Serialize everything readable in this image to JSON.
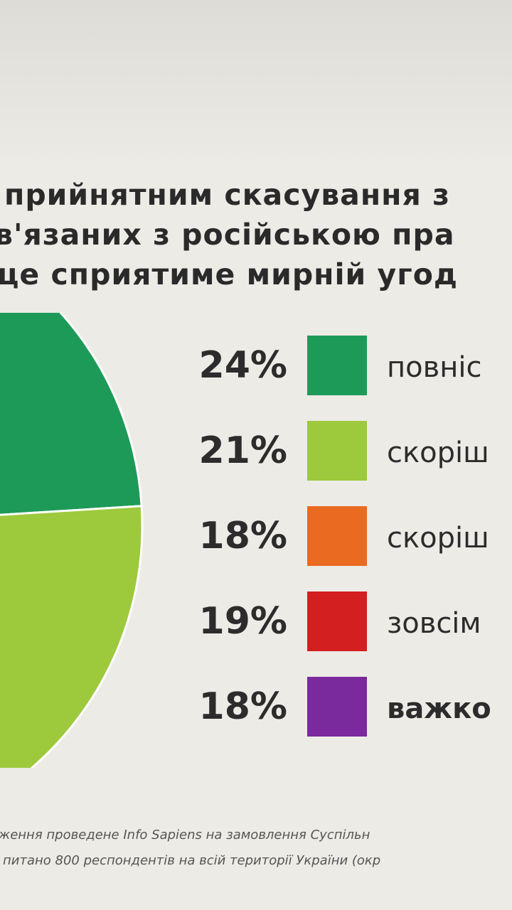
{
  "title": {
    "lines": [
      "прийнятним скасування з",
      "в'язаних з російською пра",
      "це сприятиме мирній угод"
    ]
  },
  "chart_data": {
    "type": "pie",
    "slices": [
      {
        "label": "повніс",
        "value": 24,
        "display": "24%",
        "color": "#1e9a58"
      },
      {
        "label": "скоріш",
        "value": 21,
        "display": "21%",
        "color": "#9dc93c"
      },
      {
        "label": "скоріш",
        "value": 18,
        "display": "18%",
        "color": "#ea6a22"
      },
      {
        "label": "зовсім",
        "value": 19,
        "display": "19%",
        "color": "#d41f20"
      },
      {
        "label": "важко",
        "value": 18,
        "display": "18%",
        "color": "#7a2a9c"
      }
    ]
  },
  "footnote": {
    "line1": "ження проведене Info Sapiens на замовлення Суспільн",
    "line2": "питано 800 респондентів на всій території України (окр"
  }
}
